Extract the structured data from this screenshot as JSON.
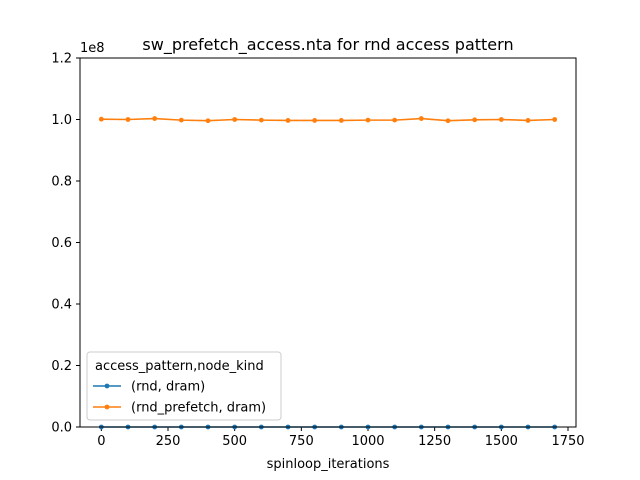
{
  "chart_data": {
    "type": "line",
    "title": "sw_prefetch_access.nta for rnd access pattern",
    "xlabel": "spinloop_iterations",
    "ylabel": "",
    "y_offset_label": "1e8",
    "xlim": [
      -80,
      1780
    ],
    "ylim": [
      0,
      120000000
    ],
    "xticks": [
      0,
      250,
      500,
      750,
      1000,
      1250,
      1500,
      1750
    ],
    "yticks": [
      0,
      20000000,
      40000000,
      60000000,
      80000000,
      100000000,
      120000000
    ],
    "ytick_labels": [
      "0.0",
      "0.2",
      "0.4",
      "0.6",
      "0.8",
      "1.0",
      "1.2"
    ],
    "grid": false,
    "legend": {
      "title": "access_pattern,node_kind",
      "placement": "lower-left"
    },
    "x": [
      0,
      100,
      200,
      300,
      400,
      500,
      600,
      700,
      800,
      900,
      1000,
      1100,
      1200,
      1300,
      1400,
      1500,
      1600,
      1700
    ],
    "series": [
      {
        "name": "(rnd, dram)",
        "color": "#1f77b4",
        "values": [
          0,
          0,
          0,
          0,
          0,
          0,
          0,
          0,
          0,
          0,
          0,
          0,
          0,
          0,
          0,
          0,
          0,
          0
        ]
      },
      {
        "name": "(rnd_prefetch, dram)",
        "color": "#ff7f0e",
        "values": [
          100100000,
          100000000,
          100300000,
          99800000,
          99600000,
          100000000,
          99800000,
          99700000,
          99700000,
          99700000,
          99800000,
          99800000,
          100300000,
          99600000,
          99900000,
          100000000,
          99700000,
          100000000
        ]
      }
    ]
  }
}
